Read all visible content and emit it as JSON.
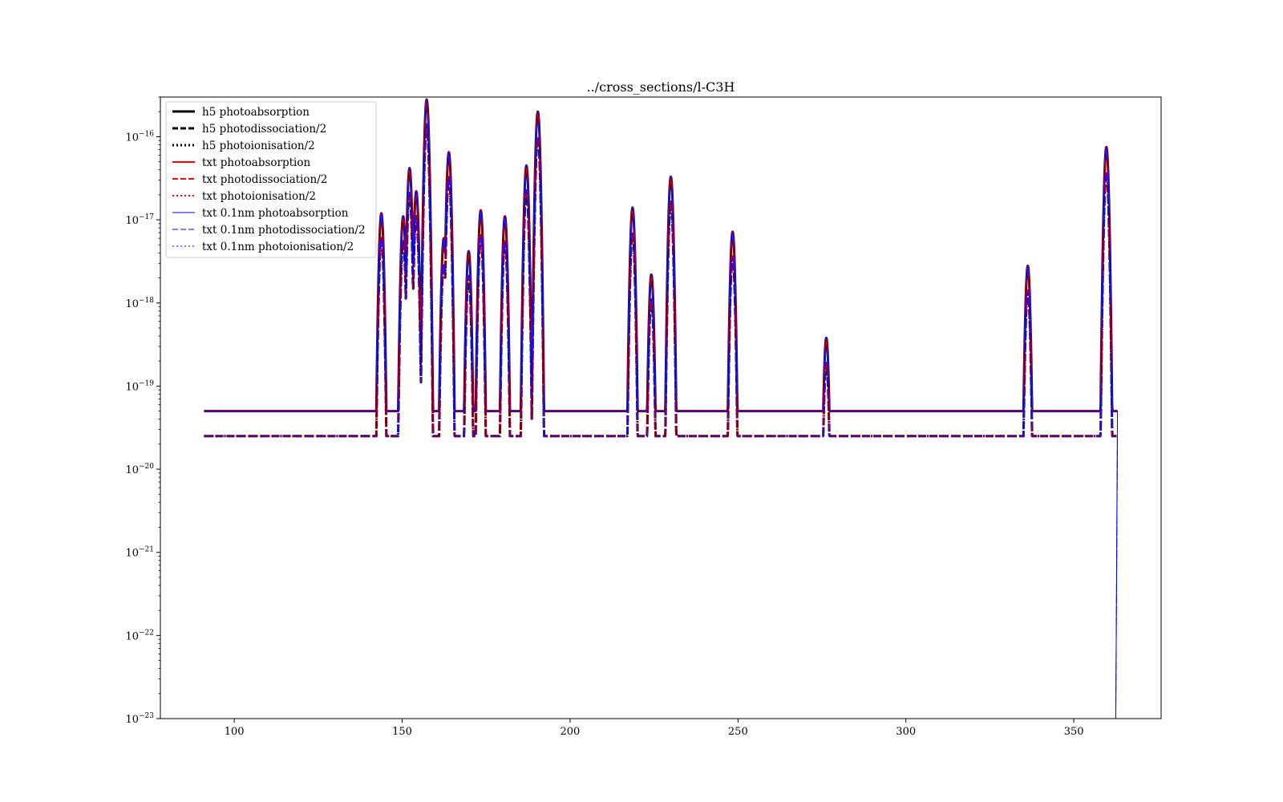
{
  "chart_data": {
    "type": "line",
    "title": "../cross_sections/l-C3H",
    "xlabel": "",
    "ylabel": "",
    "xlim": [
      78,
      376
    ],
    "ylim": [
      1e-23,
      3e-16
    ],
    "yscale": "log",
    "grid": false,
    "legend_location": "upper left",
    "x_ticks": [
      100,
      150,
      200,
      250,
      300,
      350
    ],
    "x_tick_labels": [
      "100",
      "150",
      "200",
      "250",
      "300",
      "350"
    ],
    "y_ticks": [
      1e-23,
      1e-22,
      1e-21,
      1e-20,
      1e-19,
      1e-18,
      1e-17,
      1e-16
    ],
    "y_tick_labels": [
      {
        "base": "10",
        "exp": "−23"
      },
      {
        "base": "10",
        "exp": "−22"
      },
      {
        "base": "10",
        "exp": "−21"
      },
      {
        "base": "10",
        "exp": "−20"
      },
      {
        "base": "10",
        "exp": "−19"
      },
      {
        "base": "10",
        "exp": "−18"
      },
      {
        "base": "10",
        "exp": "−17"
      },
      {
        "base": "10",
        "exp": "−16"
      }
    ],
    "x_range": [
      91,
      363
    ],
    "baseline_absorption": 5e-20,
    "baseline_half": 2.5e-20,
    "peaks": [
      {
        "x": 143.8,
        "y": 1.2e-17
      },
      {
        "x": 150.3,
        "y": 1.1e-17
      },
      {
        "x": 152.2,
        "y": 4.2e-17
      },
      {
        "x": 154.2,
        "y": 2.2e-17
      },
      {
        "x": 157.3,
        "y": 2.8e-16
      },
      {
        "x": 162.4,
        "y": 6e-18
      },
      {
        "x": 163.9,
        "y": 6.5e-17
      },
      {
        "x": 169.8,
        "y": 4.2e-18
      },
      {
        "x": 173.4,
        "y": 1.3e-17
      },
      {
        "x": 180.6,
        "y": 1.1e-17
      },
      {
        "x": 187.0,
        "y": 4.5e-17
      },
      {
        "x": 190.4,
        "y": 2e-16
      },
      {
        "x": 218.6,
        "y": 1.4e-17
      },
      {
        "x": 224.2,
        "y": 2.2e-18
      },
      {
        "x": 230.0,
        "y": 3.3e-17
      },
      {
        "x": 248.4,
        "y": 7.2e-18
      },
      {
        "x": 276.3,
        "y": 3.8e-19
      },
      {
        "x": 336.3,
        "y": 2.8e-18
      },
      {
        "x": 359.7,
        "y": 7.5e-17
      }
    ],
    "drop_x": 362.5,
    "series": [
      {
        "name": "h5 photoabsorption",
        "color": "#000000",
        "style": "solid",
        "width": 3,
        "scale": 1
      },
      {
        "name": "h5 photodissociation/2",
        "color": "#000000",
        "style": "dashed",
        "width": 3,
        "scale": 0.5
      },
      {
        "name": "h5 photoionisation/2",
        "color": "#000000",
        "style": "dotted",
        "width": 3,
        "scale": 0.5
      },
      {
        "name": "txt photoabsorption",
        "color": "#ff0000",
        "style": "solid",
        "width": 2,
        "scale": 1
      },
      {
        "name": "txt photodissociation/2",
        "color": "#ff0000",
        "style": "dashed",
        "width": 2,
        "scale": 0.5
      },
      {
        "name": "txt photoionisation/2",
        "color": "#ff0000",
        "style": "dotted",
        "width": 2,
        "scale": 0.5
      },
      {
        "name": "txt 0.1nm photoabsorption",
        "color": "#0000ff",
        "style": "solid",
        "width": 1,
        "scale": 1
      },
      {
        "name": "txt 0.1nm photodissociation/2",
        "color": "#0000ff",
        "style": "dashed",
        "width": 1,
        "scale": 0.5
      },
      {
        "name": "txt 0.1nm photoionisation/2",
        "color": "#0000ff",
        "style": "dotted",
        "width": 1,
        "scale": 0.5
      }
    ]
  }
}
